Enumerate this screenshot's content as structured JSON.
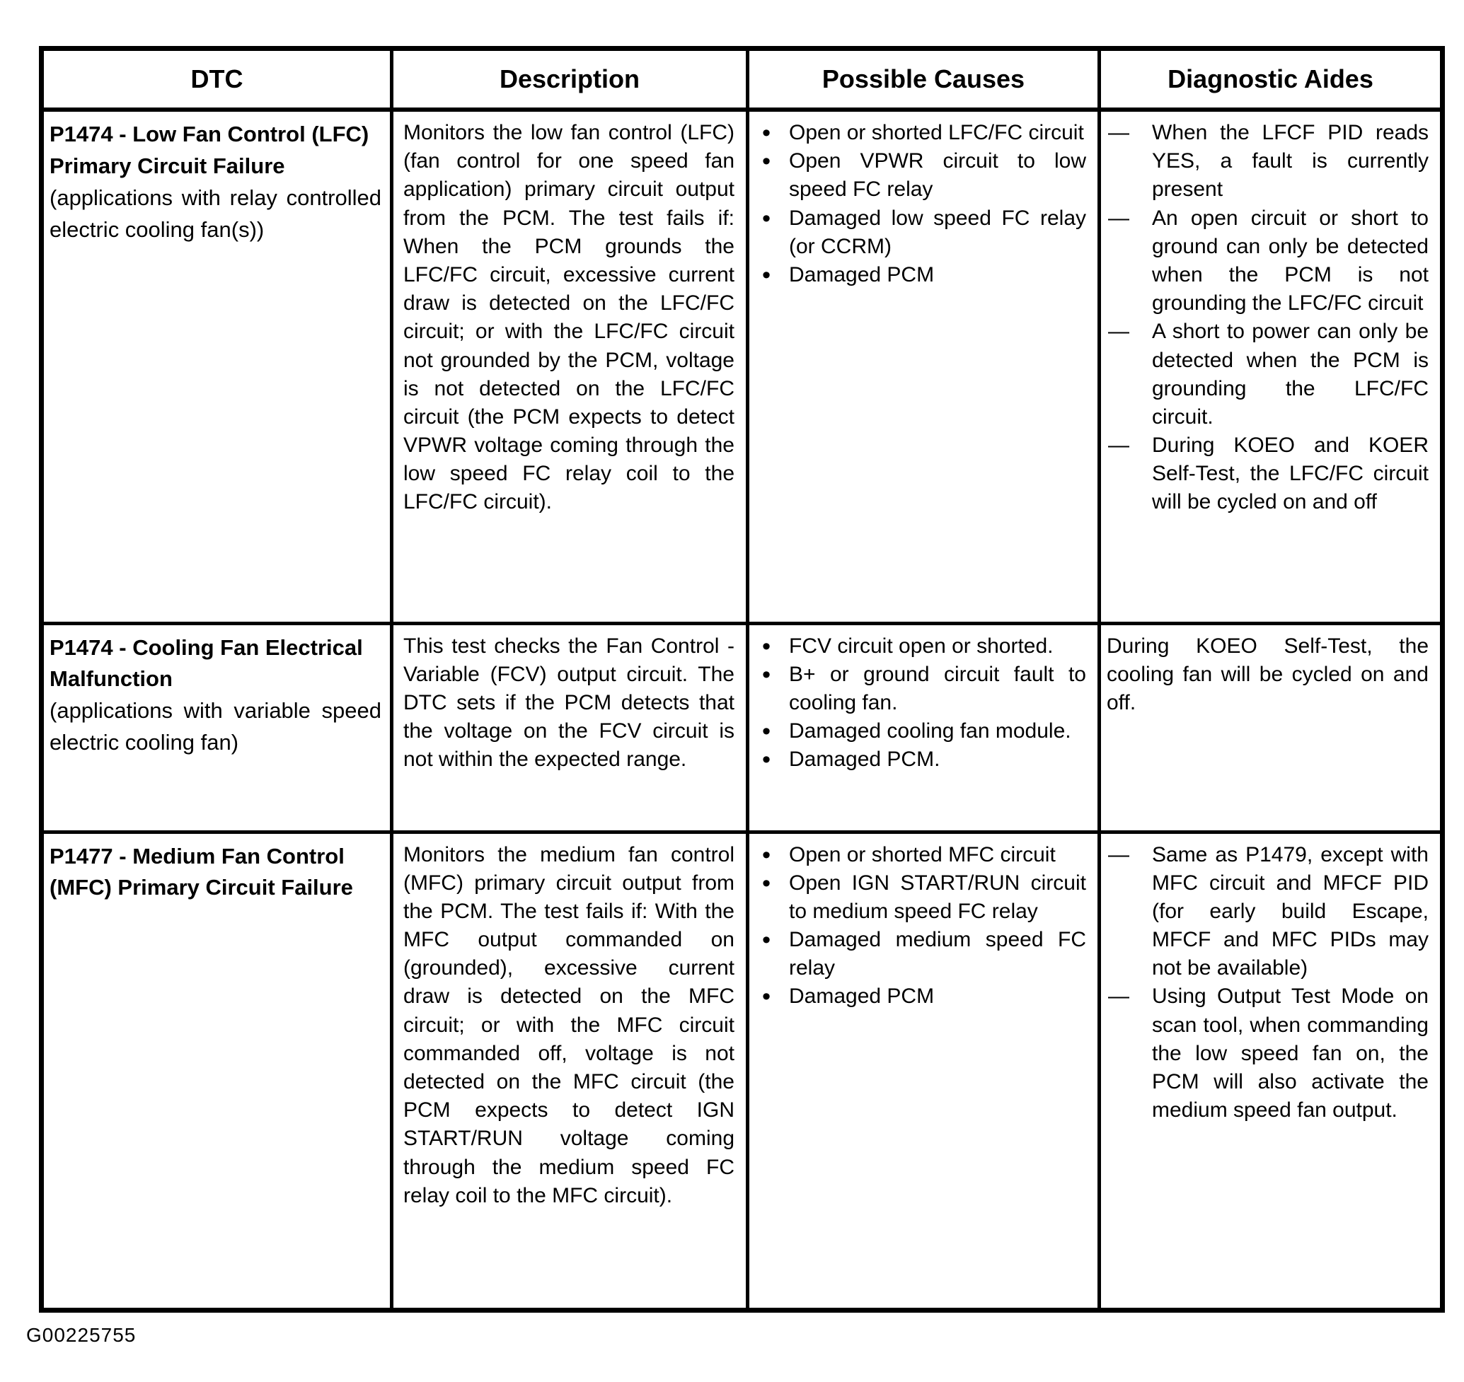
{
  "page": {
    "figure_id": "G00225755"
  },
  "table": {
    "headers": [
      "DTC",
      "Description",
      "Possible Causes",
      "Diagnostic Aides"
    ],
    "rows": [
      {
        "dtc": {
          "code": "P1474 - Low Fan Control (LFC) Primary Circuit Failure",
          "note": "(applications with relay controlled electric cooling fan(s))"
        },
        "description": "Monitors the low fan control (LFC) (fan control for one speed fan application) primary circuit output from the PCM. The test fails if: When the PCM grounds the LFC/FC circuit, excessive current draw is detected on the LFC/FC circuit; or with the LFC/FC circuit not grounded by the PCM, voltage is not detected on the LFC/FC circuit (the PCM expects to detect VPWR voltage coming through the low speed FC relay coil to the LFC/FC circuit).",
        "possible_causes": [
          "Open or shorted LFC/FC circuit",
          "Open VPWR circuit to low speed FC relay",
          "Damaged low speed FC relay (or CCRM)",
          "Damaged PCM"
        ],
        "diagnostic_aides": {
          "style": "dash",
          "items": [
            "When the LFCF PID reads YES, a fault is currently present",
            "An open circuit or short to ground can only be detected when the PCM is not grounding the LFC/FC circuit",
            "A short to power can only be detected when the PCM is grounding the LFC/FC circuit.",
            "During KOEO and KOER Self-Test, the LFC/FC circuit will be cycled on and off"
          ]
        }
      },
      {
        "dtc": {
          "code": "P1474 - Cooling Fan Electrical Malfunction",
          "note": "(applications with variable speed electric cooling fan)"
        },
        "description": "This test checks the Fan Control - Variable (FCV) output circuit. The DTC sets if the PCM detects that the voltage on the FCV circuit is not within the expected range.",
        "possible_causes": [
          "FCV circuit open or shorted.",
          "B+ or ground circuit fault to cooling fan.",
          "Damaged cooling fan module.",
          "Damaged PCM."
        ],
        "diagnostic_aides": {
          "style": "plain",
          "items": [
            "During KOEO Self-Test, the cooling fan will be cycled on and off."
          ]
        }
      },
      {
        "dtc": {
          "code": "P1477 - Medium Fan Control (MFC) Primary Circuit Failure",
          "note": ""
        },
        "description": "Monitors the medium fan control (MFC) primary circuit output from the PCM. The test fails if: With the MFC output commanded on (grounded), excessive current draw is detected on the MFC circuit; or with the MFC circuit commanded off, voltage is not detected on the MFC circuit (the PCM expects to detect IGN START/RUN voltage coming through the medium speed FC relay coil to the MFC circuit).",
        "possible_causes": [
          "Open or shorted MFC circuit",
          "Open IGN START/RUN circuit to medium speed FC relay",
          "Damaged medium speed FC relay",
          "Damaged PCM"
        ],
        "diagnostic_aides": {
          "style": "dash",
          "items": [
            "Same as P1479, except with MFC circuit and MFCF PID (for early build Escape, MFCF and MFC PIDs may not be available)",
            "Using Output Test Mode on scan tool, when commanding the low speed fan on, the PCM will also activate the medium speed fan output."
          ]
        }
      }
    ]
  }
}
